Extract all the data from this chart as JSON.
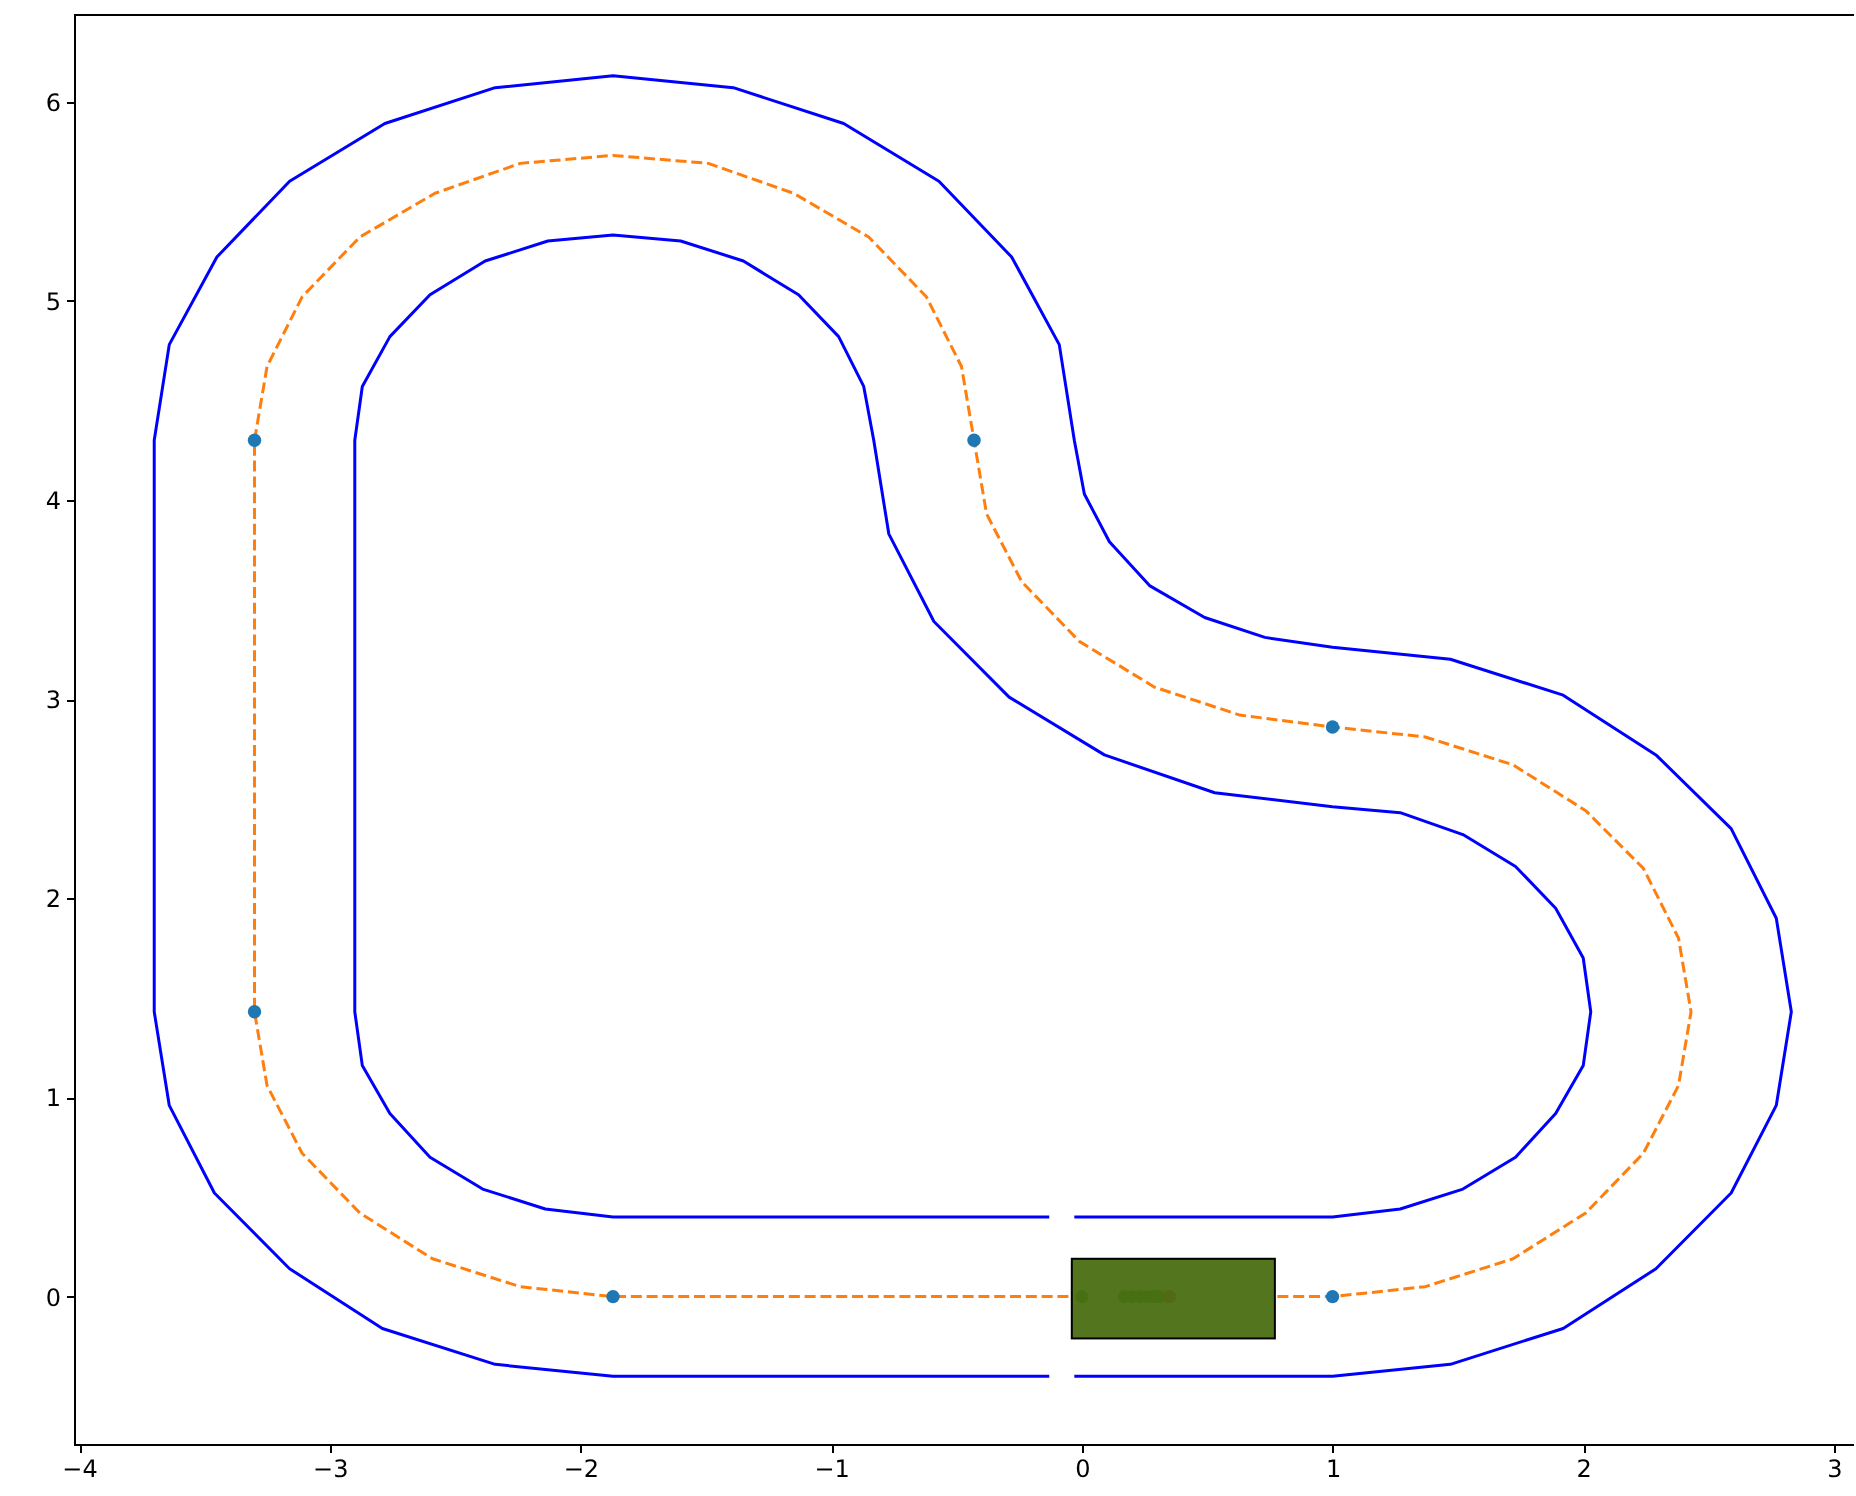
{
  "chart_data": {
    "type": "line",
    "xlim": [
      -4.02,
      3.08
    ],
    "ylim": [
      -0.74,
      6.44
    ],
    "xticks": [
      {
        "value": -4,
        "label": "−4"
      },
      {
        "value": -3,
        "label": "−3"
      },
      {
        "value": -2,
        "label": "−2"
      },
      {
        "value": -1,
        "label": "−1"
      },
      0,
      1,
      2,
      3
    ],
    "yticks": [
      0,
      1,
      2,
      3,
      4,
      5,
      6
    ],
    "grid": false,
    "series": [
      {
        "type": "line",
        "color": "#0000ff",
        "line_style": "solid",
        "x": [
          -0.03,
          1,
          1.47,
          1.92,
          2.29,
          2.59,
          2.77,
          2.83,
          2.77,
          2.59,
          2.29,
          1.92,
          1.47,
          1,
          0.73,
          0.49,
          0.27,
          0.11,
          0.01,
          -0.03,
          -0.09,
          -0.28,
          -0.57,
          -0.95,
          -1.39,
          -1.87,
          -2.34,
          -2.78,
          -3.16,
          -3.45,
          -3.64,
          -3.7,
          -3.7,
          -3.64,
          -3.46,
          -3.16,
          -2.79,
          -2.34,
          -1.87,
          -0.13
        ],
        "values": [
          -0.4,
          -0.4,
          -0.34,
          -0.16,
          0.14,
          0.52,
          0.96,
          1.43,
          1.9,
          2.35,
          2.72,
          3.02,
          3.2,
          3.26,
          3.31,
          3.41,
          3.57,
          3.79,
          4.03,
          4.3,
          4.78,
          5.22,
          5.6,
          5.89,
          6.07,
          6.13,
          6.07,
          5.89,
          5.6,
          5.22,
          4.78,
          4.3,
          1.43,
          0.96,
          0.52,
          0.14,
          -0.16,
          -0.34,
          -0.4,
          -0.4
        ]
      },
      {
        "type": "line",
        "color": "#0000ff",
        "line_style": "solid",
        "x": [
          -0.03,
          1,
          1.27,
          1.52,
          1.73,
          1.89,
          2,
          2.03,
          2,
          1.89,
          1.73,
          1.52,
          1.27,
          1,
          0.53,
          0.09,
          -0.29,
          -0.59,
          -0.77,
          -0.83,
          -0.87,
          -0.97,
          -1.13,
          -1.35,
          -1.6,
          -1.87,
          -2.13,
          -2.38,
          -2.6,
          -2.76,
          -2.87,
          -2.9,
          -2.9,
          -2.87,
          -2.76,
          -2.6,
          -2.39,
          -2.14,
          -1.87,
          -0.13
        ],
        "values": [
          0.4,
          0.4,
          0.44,
          0.54,
          0.7,
          0.92,
          1.16,
          1.43,
          1.7,
          1.95,
          2.16,
          2.32,
          2.43,
          2.46,
          2.53,
          2.72,
          3.01,
          3.39,
          3.83,
          4.3,
          4.57,
          4.82,
          5.03,
          5.2,
          5.3,
          5.33,
          5.3,
          5.2,
          5.03,
          4.82,
          4.57,
          4.3,
          1.43,
          1.16,
          0.92,
          0.7,
          0.54,
          0.44,
          0.4,
          0.4
        ]
      },
      {
        "type": "line",
        "color": "#ff7f0e",
        "line_style": "dashed",
        "x": [
          0.78,
          1,
          1.37,
          1.72,
          2.01,
          2.24,
          2.38,
          2.43,
          2.38,
          2.24,
          2.01,
          1.72,
          1.37,
          1,
          0.63,
          0.29,
          -0.01,
          -0.24,
          -0.38,
          -0.43,
          -0.48,
          -0.62,
          -0.85,
          -1.15,
          -1.49,
          -1.87,
          -2.24,
          -2.58,
          -2.88,
          -3.11,
          -3.25,
          -3.3,
          -3.3,
          -3.25,
          -3.11,
          -2.88,
          -2.59,
          -2.24,
          -1.87,
          -0.05
        ],
        "values": [
          0,
          0,
          0.05,
          0.19,
          0.42,
          0.72,
          1.06,
          1.43,
          1.8,
          2.15,
          2.44,
          2.67,
          2.81,
          2.86,
          2.92,
          3.06,
          3.29,
          3.59,
          3.93,
          4.3,
          4.67,
          5.02,
          5.32,
          5.54,
          5.69,
          5.73,
          5.69,
          5.54,
          5.32,
          5.02,
          4.67,
          4.3,
          1.43,
          1.06,
          0.72,
          0.42,
          0.19,
          0.05,
          0,
          0
        ]
      },
      {
        "type": "scatter",
        "color": "#1f77b4",
        "marker": "circle",
        "x": [
          -3.3,
          -0.43,
          1,
          -3.3,
          -1.87,
          1
        ],
        "values": [
          4.3,
          4.3,
          2.86,
          1.43,
          0,
          0
        ]
      },
      {
        "type": "scatter",
        "color": "#2ca02c",
        "marker": "circle",
        "x": [
          0,
          0.17,
          0.2,
          0.23,
          0.26,
          0.29,
          0.31
        ],
        "values": [
          0,
          0,
          0,
          0,
          0,
          0,
          0
        ]
      },
      {
        "type": "scatter",
        "color": "#d62728",
        "marker": "circle",
        "x": [
          0.35
        ],
        "values": [
          0
        ]
      }
    ]
  }
}
